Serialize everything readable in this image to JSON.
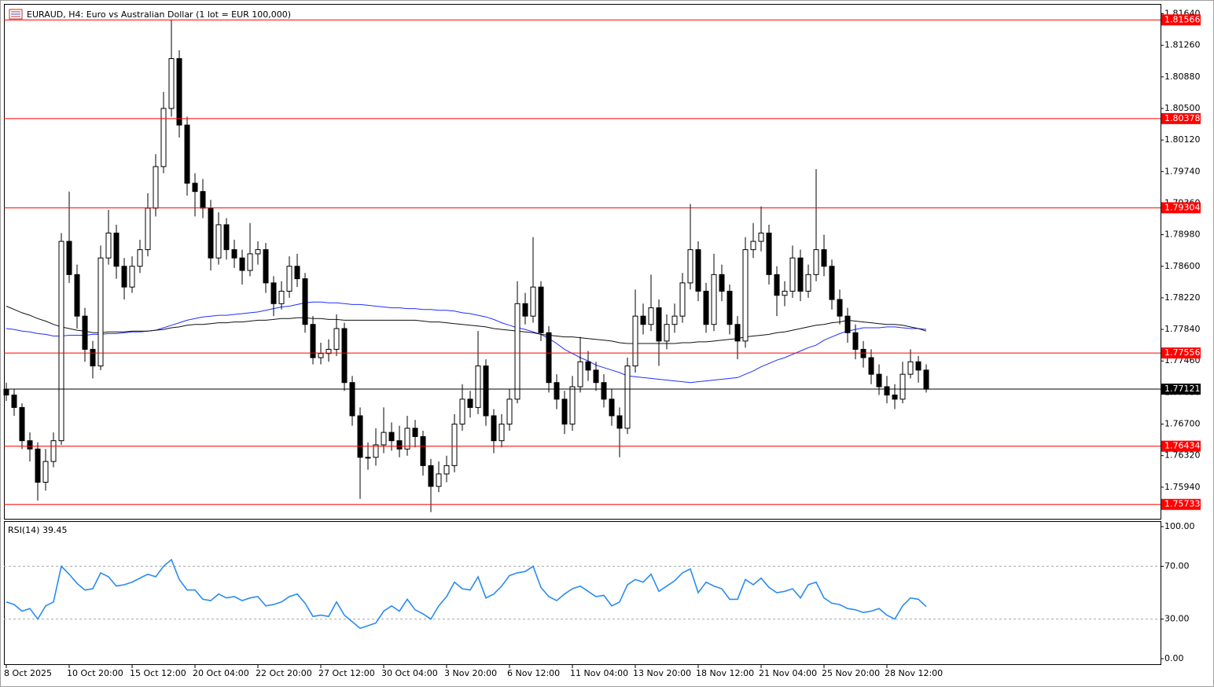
{
  "chart_data": {
    "type": "candlestick",
    "title": "EURAUD, H4:  Euro vs Australian Dollar (1 lot = EUR 100,000)",
    "categories": [
      "8 Oct 2025",
      null,
      null,
      null,
      null,
      null,
      null,
      null,
      "10 Oct 20:00",
      null,
      null,
      null,
      null,
      null,
      null,
      null,
      "15 Oct 12:00",
      null,
      null,
      null,
      null,
      null,
      null,
      null,
      "20 Oct 04:00",
      null,
      null,
      null,
      null,
      null,
      null,
      null,
      "22 Oct 20:00",
      null,
      null,
      null,
      null,
      null,
      null,
      null,
      "27 Oct 12:00",
      null,
      null,
      null,
      null,
      null,
      null,
      null,
      "30 Oct 04:00",
      null,
      null,
      null,
      null,
      null,
      null,
      null,
      "3 Nov 20:00",
      null,
      null,
      null,
      null,
      null,
      null,
      null,
      "6 Nov 12:00",
      null,
      null,
      null,
      null,
      null,
      null,
      null,
      "11 Nov 04:00",
      null,
      null,
      null,
      null,
      null,
      null,
      null,
      "13 Nov 20:00",
      null,
      null,
      null,
      null,
      null,
      null,
      null,
      "18 Nov 12:00",
      null,
      null,
      null,
      null,
      null,
      null,
      null,
      "21 Nov 04:00",
      null,
      null,
      null,
      null,
      null,
      null,
      null,
      "25 Nov 20:00",
      null,
      null,
      null,
      null,
      null,
      null,
      null,
      "28 Nov 12:00",
      null,
      null,
      null,
      null,
      null
    ],
    "open": [
      1.7712,
      1.7705,
      1.769,
      1.765,
      1.764,
      1.76,
      1.7625,
      1.765,
      1.789,
      1.785,
      1.78,
      1.776,
      1.774,
      1.787,
      1.79,
      1.786,
      1.7835,
      1.786,
      1.788,
      1.793,
      1.798,
      1.805,
      1.811,
      1.803,
      1.796,
      1.795,
      1.793,
      1.787,
      1.791,
      1.788,
      1.787,
      1.7855,
      1.7875,
      1.788,
      1.784,
      1.7815,
      1.783,
      1.786,
      1.7845,
      1.779,
      1.775,
      1.7755,
      1.776,
      1.7785,
      1.772,
      1.768,
      1.763,
      1.763,
      1.7645,
      1.766,
      1.765,
      1.764,
      1.7665,
      1.7655,
      1.762,
      1.7595,
      1.761,
      1.762,
      1.767,
      1.77,
      1.769,
      1.774,
      1.768,
      1.765,
      1.767,
      1.77,
      1.7815,
      1.78,
      1.7835,
      1.778,
      1.772,
      1.77,
      1.767,
      1.7715,
      1.7745,
      1.7735,
      1.772,
      1.77,
      1.768,
      1.7665,
      1.774,
      1.78,
      1.779,
      1.781,
      1.777,
      1.779,
      1.78,
      1.784,
      1.788,
      1.783,
      1.779,
      1.785,
      1.783,
      1.779,
      1.777,
      1.788,
      1.789,
      1.79,
      1.785,
      1.7825,
      1.783,
      1.787,
      1.783,
      1.785,
      1.788,
      1.786,
      1.782,
      1.78,
      1.778,
      1.776,
      1.775,
      1.773,
      1.7715,
      1.7705,
      1.77,
      1.773,
      1.7745,
      1.7735
    ],
    "high": [
      1.772,
      1.7712,
      1.7695,
      1.766,
      1.7648,
      1.764,
      1.766,
      1.79,
      1.795,
      1.7862,
      1.781,
      1.777,
      1.7885,
      1.7928,
      1.791,
      1.787,
      1.7872,
      1.7892,
      1.7948,
      1.7995,
      1.807,
      1.8157,
      1.812,
      1.804,
      1.7972,
      1.7965,
      1.794,
      1.7925,
      1.7918,
      1.7892,
      1.788,
      1.7912,
      1.789,
      1.7888,
      1.7848,
      1.7842,
      1.7872,
      1.7875,
      1.7852,
      1.78,
      1.7768,
      1.7772,
      1.7802,
      1.7792,
      1.7728,
      1.769,
      1.7648,
      1.7665,
      1.769,
      1.7672,
      1.7668,
      1.768,
      1.7675,
      1.7662,
      1.7628,
      1.7625,
      1.7632,
      1.7682,
      1.7718,
      1.771,
      1.7782,
      1.7748,
      1.7688,
      1.7682,
      1.7712,
      1.7842,
      1.7828,
      1.7895,
      1.7842,
      1.7788,
      1.773,
      1.771,
      1.7728,
      1.7775,
      1.7758,
      1.7745,
      1.773,
      1.7712,
      1.769,
      1.775,
      1.7832,
      1.7815,
      1.785,
      1.782,
      1.7802,
      1.7815,
      1.7852,
      1.7935,
      1.789,
      1.784,
      1.7875,
      1.7862,
      1.7838,
      1.78,
      1.7895,
      1.7912,
      1.7932,
      1.791,
      1.786,
      1.7842,
      1.7885,
      1.788,
      1.7862,
      1.7977,
      1.7898,
      1.7868,
      1.7832,
      1.781,
      1.779,
      1.777,
      1.776,
      1.7742,
      1.7728,
      1.7718,
      1.7745,
      1.776,
      1.7752,
      1.7742
    ],
    "low": [
      1.7698,
      1.768,
      1.764,
      1.7625,
      1.7578,
      1.759,
      1.7618,
      1.7645,
      1.784,
      1.7785,
      1.7745,
      1.7725,
      1.7735,
      1.7862,
      1.7845,
      1.782,
      1.7828,
      1.7852,
      1.7872,
      1.792,
      1.7972,
      1.804,
      1.8015,
      1.7945,
      1.792,
      1.7918,
      1.7855,
      1.7862,
      1.7868,
      1.7858,
      1.7838,
      1.7848,
      1.7862,
      1.7828,
      1.78,
      1.7808,
      1.7822,
      1.7835,
      1.778,
      1.7742,
      1.7742,
      1.7745,
      1.7752,
      1.771,
      1.7668,
      1.758,
      1.7615,
      1.762,
      1.7635,
      1.7638,
      1.763,
      1.7632,
      1.7642,
      1.7608,
      1.7564,
      1.7588,
      1.76,
      1.7612,
      1.7662,
      1.7678,
      1.7682,
      1.7668,
      1.7635,
      1.7642,
      1.7662,
      1.7695,
      1.779,
      1.7792,
      1.777,
      1.7708,
      1.7688,
      1.7658,
      1.7662,
      1.7708,
      1.7722,
      1.771,
      1.769,
      1.7668,
      1.763,
      1.7658,
      1.7732,
      1.7778,
      1.7782,
      1.774,
      1.776,
      1.778,
      1.7792,
      1.7832,
      1.7818,
      1.778,
      1.7782,
      1.7818,
      1.7778,
      1.7748,
      1.7762,
      1.787,
      1.7878,
      1.7838,
      1.78,
      1.7812,
      1.7822,
      1.7818,
      1.7822,
      1.7842,
      1.7848,
      1.7808,
      1.779,
      1.7768,
      1.7748,
      1.7738,
      1.7718,
      1.7705,
      1.7695,
      1.7688,
      1.7695,
      1.7725,
      1.772,
      1.7708
    ],
    "close": [
      1.7705,
      1.769,
      1.765,
      1.764,
      1.76,
      1.7625,
      1.765,
      1.789,
      1.785,
      1.78,
      1.776,
      1.774,
      1.787,
      1.79,
      1.786,
      1.7835,
      1.786,
      1.788,
      1.793,
      1.798,
      1.805,
      1.811,
      1.803,
      1.796,
      1.795,
      1.793,
      1.787,
      1.791,
      1.788,
      1.787,
      1.7855,
      1.7875,
      1.788,
      1.784,
      1.7815,
      1.783,
      1.786,
      1.7845,
      1.779,
      1.775,
      1.7755,
      1.776,
      1.7785,
      1.772,
      1.768,
      1.763,
      1.763,
      1.7645,
      1.766,
      1.765,
      1.764,
      1.7665,
      1.7655,
      1.762,
      1.7595,
      1.761,
      1.762,
      1.767,
      1.77,
      1.769,
      1.774,
      1.768,
      1.765,
      1.767,
      1.77,
      1.7815,
      1.78,
      1.7835,
      1.778,
      1.772,
      1.77,
      1.767,
      1.7715,
      1.7745,
      1.7735,
      1.772,
      1.77,
      1.768,
      1.7665,
      1.774,
      1.78,
      1.779,
      1.781,
      1.777,
      1.779,
      1.78,
      1.784,
      1.788,
      1.783,
      1.779,
      1.785,
      1.783,
      1.779,
      1.777,
      1.788,
      1.789,
      1.79,
      1.785,
      1.7825,
      1.783,
      1.787,
      1.783,
      1.785,
      1.788,
      1.786,
      1.782,
      1.78,
      1.778,
      1.776,
      1.775,
      1.773,
      1.7715,
      1.7705,
      1.77,
      1.773,
      1.7745,
      1.7735,
      1.7712
    ],
    "moving_averages": [
      {
        "color": "#1f2fff",
        "values": [
          1.7785,
          1.7784,
          1.7782,
          1.7781,
          1.7779,
          1.7778,
          1.7776,
          1.7776,
          1.7777,
          1.7777,
          1.7777,
          1.7778,
          1.7778,
          1.7779,
          1.7779,
          1.778,
          1.7781,
          1.7781,
          1.7782,
          1.7783,
          1.7786,
          1.7789,
          1.7792,
          1.7795,
          1.7797,
          1.7799,
          1.78,
          1.7801,
          1.7801,
          1.7802,
          1.7803,
          1.7804,
          1.7805,
          1.7807,
          1.7809,
          1.7811,
          1.7812,
          1.7814,
          1.7816,
          1.7817,
          1.7817,
          1.7816,
          1.7816,
          1.7815,
          1.7814,
          1.7814,
          1.7813,
          1.7812,
          1.7811,
          1.781,
          1.781,
          1.7809,
          1.7809,
          1.7808,
          1.7808,
          1.7807,
          1.7807,
          1.7806,
          1.7804,
          1.7803,
          1.7801,
          1.7799,
          1.7796,
          1.7792,
          1.7789,
          1.7786,
          1.7784,
          1.7781,
          1.7778,
          1.7773,
          1.7767,
          1.776,
          1.7755,
          1.775,
          1.7746,
          1.7741,
          1.7738,
          1.7735,
          1.7732,
          1.7728,
          1.7727,
          1.7726,
          1.7725,
          1.7724,
          1.7723,
          1.7722,
          1.7721,
          1.772,
          1.7721,
          1.7722,
          1.7723,
          1.7724,
          1.7725,
          1.7726,
          1.773,
          1.7734,
          1.7739,
          1.7743,
          1.7747,
          1.775,
          1.7754,
          1.7758,
          1.7762,
          1.7765,
          1.7771,
          1.7775,
          1.7779,
          1.7782,
          1.7784,
          1.7786,
          1.7786,
          1.7786,
          1.7787,
          1.7787,
          1.7786,
          1.7785,
          1.7785,
          1.7784
        ]
      },
      {
        "color": "#111111",
        "values": [
          1.7812,
          1.7808,
          1.7804,
          1.7801,
          1.7797,
          1.7794,
          1.779,
          1.7787,
          1.7785,
          1.7783,
          1.7782,
          1.778,
          1.778,
          1.7781,
          1.7781,
          1.7781,
          1.7782,
          1.7782,
          1.7782,
          1.7783,
          1.7784,
          1.7786,
          1.7787,
          1.7789,
          1.779,
          1.779,
          1.7791,
          1.7792,
          1.7792,
          1.7793,
          1.7793,
          1.7794,
          1.7795,
          1.7795,
          1.7796,
          1.7797,
          1.7797,
          1.7798,
          1.7798,
          1.7797,
          1.7797,
          1.7796,
          1.7796,
          1.7795,
          1.7795,
          1.7795,
          1.7795,
          1.7795,
          1.7795,
          1.7795,
          1.7795,
          1.7795,
          1.7795,
          1.7794,
          1.7793,
          1.7793,
          1.7792,
          1.7791,
          1.779,
          1.7789,
          1.7788,
          1.7787,
          1.7785,
          1.7784,
          1.7783,
          1.7782,
          1.7781,
          1.778,
          1.7778,
          1.7777,
          1.7776,
          1.7775,
          1.7775,
          1.7774,
          1.7773,
          1.7772,
          1.7771,
          1.777,
          1.7768,
          1.7767,
          1.7767,
          1.7767,
          1.7767,
          1.7767,
          1.7767,
          1.7767,
          1.7768,
          1.7768,
          1.7769,
          1.7769,
          1.777,
          1.7771,
          1.7772,
          1.7773,
          1.7775,
          1.7776,
          1.7777,
          1.7778,
          1.778,
          1.7781,
          1.7783,
          1.7785,
          1.7787,
          1.7789,
          1.779,
          1.7792,
          1.7793,
          1.7795,
          1.7794,
          1.7793,
          1.7792,
          1.7791,
          1.779,
          1.779,
          1.7789,
          1.7787,
          1.7785,
          1.7782
        ]
      }
    ],
    "levels": {
      "color": "#ff0000",
      "values": [
        1.81566,
        1.80378,
        1.79304,
        1.77556,
        1.76434,
        1.75733
      ]
    },
    "current_price": 1.77121,
    "ylim": [
      1.7556,
      1.8173
    ],
    "yticks": [
      {
        "value": 1.8164,
        "label": "1.81640"
      },
      {
        "value": 1.8126,
        "label": "1.81260"
      },
      {
        "value": 1.8088,
        "label": "1.80880"
      },
      {
        "value": 1.805,
        "label": "1.80500"
      },
      {
        "value": 1.8012,
        "label": "1.80120"
      },
      {
        "value": 1.7974,
        "label": "1.79740"
      },
      {
        "value": 1.7936,
        "label": "1.79360"
      },
      {
        "value": 1.7898,
        "label": "1.78980"
      },
      {
        "value": 1.786,
        "label": "1.78600"
      },
      {
        "value": 1.7822,
        "label": "1.78220"
      },
      {
        "value": 1.7784,
        "label": "1.77840"
      },
      {
        "value": 1.7746,
        "label": "1.77460"
      },
      {
        "value": 1.7708,
        "label": "1.77080"
      },
      {
        "value": 1.767,
        "label": "1.76700"
      },
      {
        "value": 1.7632,
        "label": "1.76320"
      },
      {
        "value": 1.7594,
        "label": "1.75940"
      }
    ],
    "grid": false,
    "rsi": {
      "title": "RSI(14) 39.45",
      "color": "#2a8cf0",
      "values": [
        43,
        41,
        36,
        38,
        30,
        40,
        43,
        70,
        64,
        57,
        52,
        53,
        65,
        62,
        55,
        56,
        58,
        61,
        64,
        62,
        70,
        75,
        60,
        52,
        52,
        45,
        44,
        49,
        46,
        47,
        44,
        46,
        47,
        40,
        41,
        43,
        47,
        49,
        42,
        32,
        33,
        32,
        43,
        33,
        28,
        23,
        25,
        27,
        36,
        40,
        36,
        45,
        37,
        34,
        30,
        40,
        47,
        58,
        53,
        52,
        62,
        46,
        49,
        55,
        63,
        65,
        66,
        70,
        54,
        47,
        44,
        49,
        53,
        55,
        51,
        47,
        48,
        40,
        43,
        56,
        60,
        58,
        64,
        51,
        55,
        59,
        65,
        68,
        50,
        58,
        55,
        53,
        45,
        45,
        60,
        56,
        61,
        54,
        50,
        51,
        53,
        46,
        56,
        58,
        46,
        42,
        41,
        38,
        37,
        35,
        36,
        38,
        33,
        30,
        40,
        46,
        45,
        39.45
      ],
      "ylim": [
        0,
        100
      ],
      "yticks": [
        {
          "value": 100,
          "label": "100.00"
        },
        {
          "value": 70,
          "label": "70.00"
        },
        {
          "value": 30,
          "label": "30.00"
        },
        {
          "value": 0,
          "label": "0.00"
        }
      ]
    }
  }
}
